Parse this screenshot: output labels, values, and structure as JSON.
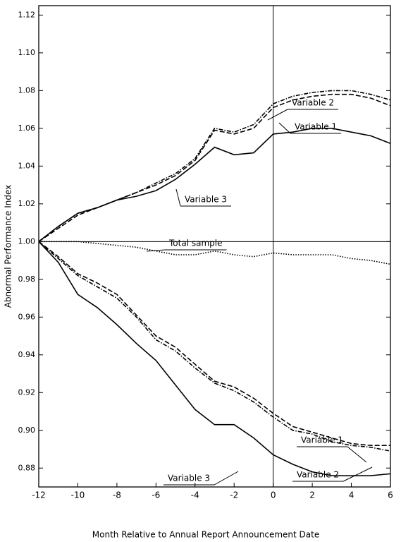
{
  "chart_data": {
    "type": "line",
    "xlabel": "Month Relative to Annual Report  Announcement Date",
    "ylabel": "Abnormal Performance  Index",
    "x": [
      -12,
      -11,
      -10,
      -9,
      -8,
      -7,
      -6,
      -5,
      -4,
      -3,
      -2,
      -1,
      0,
      1,
      2,
      3,
      4,
      5,
      6
    ],
    "xlim": [
      -12,
      6
    ],
    "xticks": [
      -12,
      -10,
      -8,
      -6,
      -4,
      -2,
      0,
      2,
      4,
      6
    ],
    "ylim": [
      0.87,
      1.125
    ],
    "yticks": [
      0.88,
      {
        "value": 0.9,
        "label": "0.90"
      },
      0.92,
      0.94,
      0.96,
      0.98,
      {
        "value": 1.0,
        "label": "1.00"
      },
      1.02,
      1.04,
      1.06,
      1.08,
      {
        "value": 1.1,
        "label": "1.10"
      },
      1.12
    ],
    "vline": 0,
    "hline": 1,
    "series": [
      {
        "name": "Variable 2",
        "color": "#000000",
        "style": "dashdot",
        "values": [
          1.0,
          1.008,
          1.015,
          1.018,
          1.022,
          1.026,
          1.031,
          1.036,
          1.044,
          1.06,
          1.058,
          1.062,
          1.073,
          1.077,
          1.079,
          1.08,
          1.08,
          1.078,
          1.075
        ]
      },
      {
        "name": "Variable 1",
        "color": "#000000",
        "style": "dashed",
        "values": [
          1.0,
          1.007,
          1.014,
          1.018,
          1.022,
          1.026,
          1.03,
          1.035,
          1.043,
          1.059,
          1.057,
          1.06,
          1.071,
          1.075,
          1.077,
          1.078,
          1.078,
          1.076,
          1.072
        ]
      },
      {
        "name": "Variable 3",
        "color": "#000000",
        "style": "solid",
        "values": [
          1.0,
          1.008,
          1.015,
          1.018,
          1.022,
          1.024,
          1.027,
          1.033,
          1.041,
          1.05,
          1.046,
          1.047,
          1.057,
          1.058,
          1.06,
          1.06,
          1.058,
          1.056,
          1.052
        ]
      },
      {
        "name": "Total sample",
        "color": "#000000",
        "style": "dotted",
        "values": [
          1.0,
          1.0,
          1.0,
          0.999,
          0.998,
          0.997,
          0.995,
          0.993,
          0.993,
          0.995,
          0.993,
          0.992,
          0.994,
          0.993,
          0.993,
          0.993,
          0.991,
          0.99,
          0.988
        ]
      },
      {
        "name": "Variable 1",
        "color": "#000000",
        "style": "dashed",
        "values": [
          1.0,
          0.992,
          0.983,
          0.978,
          0.972,
          0.961,
          0.95,
          0.944,
          0.935,
          0.926,
          0.923,
          0.917,
          0.909,
          0.902,
          0.899,
          0.896,
          0.893,
          0.892,
          0.892
        ]
      },
      {
        "name": "Variable 2",
        "color": "#000000",
        "style": "dashdot",
        "values": [
          1.0,
          0.991,
          0.982,
          0.976,
          0.97,
          0.96,
          0.948,
          0.942,
          0.933,
          0.925,
          0.921,
          0.915,
          0.907,
          0.9,
          0.898,
          0.894,
          0.892,
          0.891,
          0.889
        ]
      },
      {
        "name": "Variable 3",
        "color": "#000000",
        "style": "solid",
        "values": [
          1.0,
          0.989,
          0.972,
          0.965,
          0.956,
          0.946,
          0.937,
          0.924,
          0.911,
          0.903,
          0.903,
          0.896,
          0.887,
          0.882,
          0.878,
          0.876,
          0.876,
          0.876,
          0.877
        ]
      }
    ]
  }
}
